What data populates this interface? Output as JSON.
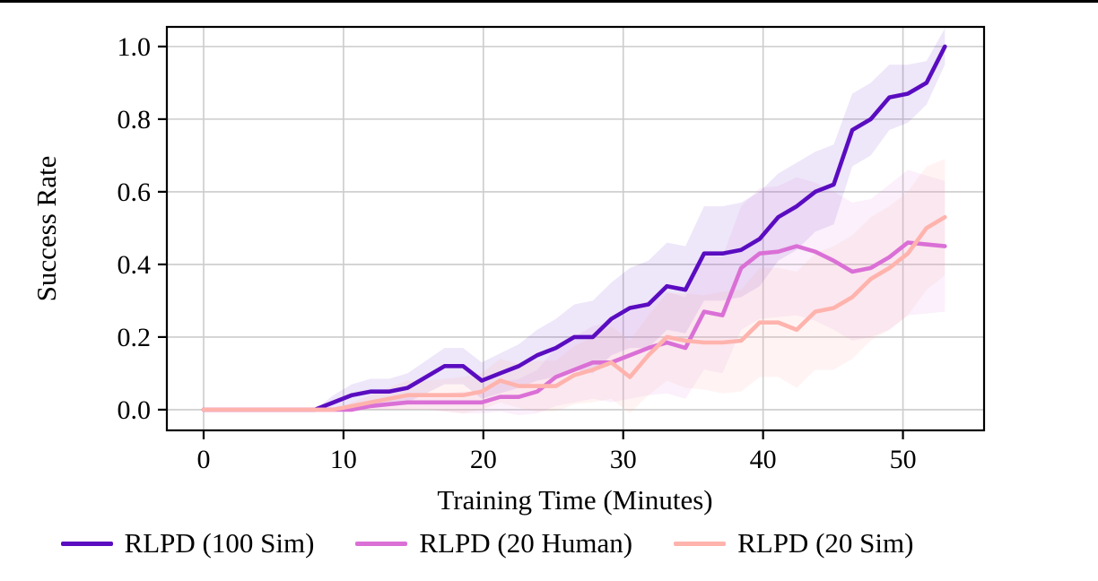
{
  "style": {
    "background": "#ffffff",
    "top_rule_color": "#000000",
    "axis_color": "#000000",
    "grid_color": "#cccccc",
    "tick_font_size": 30
  },
  "chart_data": {
    "type": "line",
    "title": "",
    "xlabel": "Training Time (Minutes)",
    "ylabel": "Success Rate",
    "xlim": [
      -2.63,
      55.8
    ],
    "ylim": [
      -0.057,
      1.054
    ],
    "xticks": [
      0,
      10,
      20,
      30,
      40,
      50
    ],
    "xtick_labels": [
      "0",
      "10",
      "20",
      "30",
      "40",
      "50"
    ],
    "yticks": [
      0.0,
      0.2,
      0.4,
      0.6,
      0.8,
      1.0
    ],
    "ytick_labels": [
      "0.0",
      "0.2",
      "0.4",
      "0.6",
      "0.8",
      "1.0"
    ],
    "grid": true,
    "legend_position": "bottom",
    "x": [
      0,
      1.33,
      2.65,
      3.98,
      5.3,
      6.63,
      7.95,
      9.28,
      10.6,
      11.93,
      13.25,
      14.58,
      15.9,
      17.23,
      18.55,
      19.88,
      21.2,
      22.53,
      23.85,
      25.18,
      26.5,
      27.83,
      29.15,
      30.48,
      31.8,
      33.13,
      34.45,
      35.78,
      37.1,
      38.43,
      39.75,
      41.08,
      42.4,
      43.73,
      45.05,
      46.38,
      47.7,
      49.03,
      50.35,
      51.68,
      53
    ],
    "series": [
      {
        "name": "RLPD (100 Sim)",
        "color": "#5a0cc0",
        "band_opacity": 0.1,
        "values": [
          0,
          0,
          0,
          0,
          0,
          0,
          0,
          0.02,
          0.04,
          0.05,
          0.05,
          0.06,
          0.09,
          0.12,
          0.12,
          0.08,
          0.1,
          0.12,
          0.15,
          0.17,
          0.2,
          0.2,
          0.25,
          0.28,
          0.29,
          0.34,
          0.33,
          0.43,
          0.43,
          0.44,
          0.47,
          0.53,
          0.56,
          0.6,
          0.62,
          0.77,
          0.8,
          0.86,
          0.87,
          0.9,
          1.0
        ],
        "band_halfwidth": [
          0,
          0,
          0,
          0,
          0,
          0,
          0,
          0.02,
          0.03,
          0.035,
          0.035,
          0.04,
          0.045,
          0.05,
          0.05,
          0.05,
          0.055,
          0.06,
          0.07,
          0.08,
          0.09,
          0.1,
          0.1,
          0.11,
          0.12,
          0.12,
          0.12,
          0.13,
          0.13,
          0.13,
          0.13,
          0.12,
          0.12,
          0.11,
          0.11,
          0.1,
          0.1,
          0.09,
          0.08,
          0.06,
          0.05
        ]
      },
      {
        "name": "RLPD (20 Human)",
        "color": "#da70d6",
        "band_opacity": 0.1,
        "values": [
          0,
          0,
          0,
          0,
          0,
          0,
          0,
          0,
          0,
          0.01,
          0.015,
          0.02,
          0.02,
          0.02,
          0.02,
          0.02,
          0.035,
          0.035,
          0.05,
          0.09,
          0.11,
          0.13,
          0.13,
          0.15,
          0.17,
          0.185,
          0.17,
          0.27,
          0.26,
          0.39,
          0.43,
          0.435,
          0.45,
          0.435,
          0.41,
          0.38,
          0.39,
          0.42,
          0.46,
          0.455,
          0.45
        ],
        "band_halfwidth": [
          0,
          0,
          0,
          0,
          0,
          0,
          0,
          0,
          0,
          0.01,
          0.015,
          0.02,
          0.02,
          0.025,
          0.03,
          0.03,
          0.04,
          0.05,
          0.06,
          0.08,
          0.09,
          0.1,
          0.11,
          0.12,
          0.13,
          0.14,
          0.14,
          0.16,
          0.16,
          0.17,
          0.18,
          0.18,
          0.19,
          0.19,
          0.19,
          0.19,
          0.19,
          0.2,
          0.2,
          0.19,
          0.18
        ]
      },
      {
        "name": "RLPD (20 Sim)",
        "color": "#ffb3ad",
        "band_opacity": 0.14,
        "values": [
          0,
          0,
          0,
          0,
          0,
          0,
          0,
          0,
          0.01,
          0.02,
          0.03,
          0.04,
          0.04,
          0.04,
          0.04,
          0.05,
          0.08,
          0.065,
          0.065,
          0.065,
          0.095,
          0.11,
          0.13,
          0.09,
          0.15,
          0.2,
          0.19,
          0.185,
          0.185,
          0.19,
          0.24,
          0.24,
          0.22,
          0.27,
          0.28,
          0.31,
          0.36,
          0.39,
          0.43,
          0.5,
          0.53
        ],
        "band_halfwidth": [
          0,
          0,
          0,
          0,
          0,
          0,
          0,
          0,
          0.01,
          0.02,
          0.03,
          0.04,
          0.04,
          0.045,
          0.05,
          0.05,
          0.06,
          0.06,
          0.07,
          0.07,
          0.08,
          0.09,
          0.1,
          0.1,
          0.11,
          0.12,
          0.13,
          0.13,
          0.14,
          0.14,
          0.15,
          0.15,
          0.16,
          0.16,
          0.17,
          0.17,
          0.17,
          0.17,
          0.17,
          0.17,
          0.16
        ]
      }
    ]
  }
}
